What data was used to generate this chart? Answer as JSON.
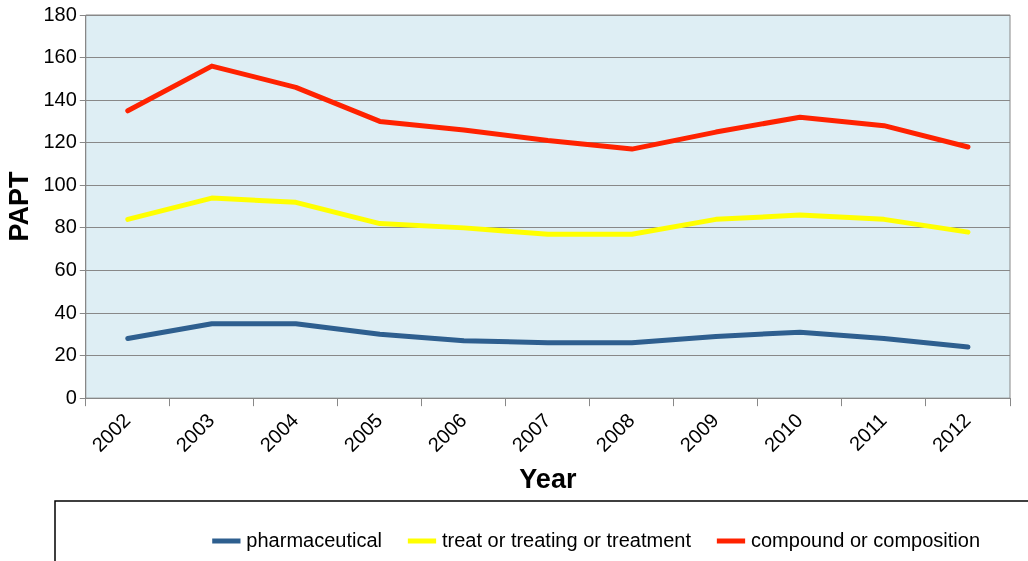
{
  "chart_data": {
    "type": "line",
    "xlabel": "Year",
    "ylabel": "PAPT",
    "categories": [
      "2002",
      "2003",
      "2004",
      "2005",
      "2006",
      "2007",
      "2008",
      "2009",
      "2010",
      "2011",
      "2012"
    ],
    "series": [
      {
        "name": "pharmaceutical",
        "color": "#2e5f8f",
        "values": [
          28,
          35,
          35,
          30,
          27,
          26,
          26,
          29,
          31,
          28,
          24
        ]
      },
      {
        "name": "treat or treating or treatment",
        "color": "#ffff00",
        "values": [
          84,
          94,
          92,
          82,
          80,
          77,
          77,
          84,
          86,
          84,
          78
        ]
      },
      {
        "name": "compound or composition",
        "color": "#ff2200",
        "values": [
          135,
          156,
          146,
          130,
          126,
          121,
          117,
          125,
          132,
          128,
          118
        ]
      }
    ],
    "ylim": [
      0,
      180
    ],
    "yticks": [
      0,
      20,
      40,
      60,
      80,
      100,
      120,
      140,
      160,
      180
    ],
    "grid": "y",
    "legend": "bottom",
    "marker": "none",
    "line_style": "solid"
  }
}
